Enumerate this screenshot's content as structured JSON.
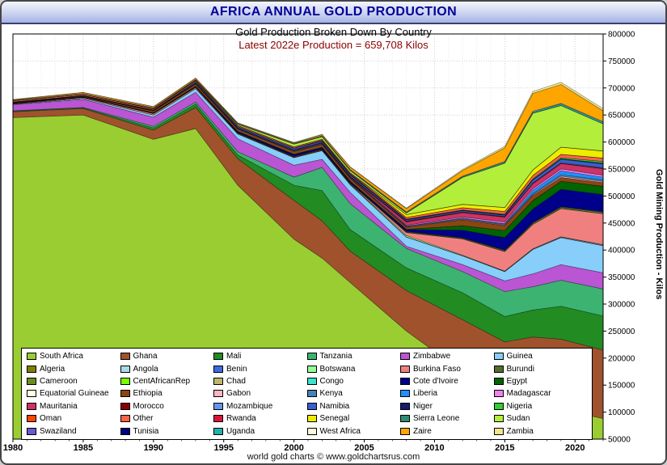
{
  "window": {
    "title": "AFRICA ANNUAL GOLD PRODUCTION"
  },
  "chart": {
    "subtitle": "Gold Production Broken Down By Country",
    "production_note": "Latest 2022e Production = 659,708 Kilos",
    "y_axis_title": "Gold Mining Production - Kilos",
    "footer_credit": "world gold charts © www.goldchartsrus.com"
  },
  "colors": {
    "title_text": "#000099",
    "note_text": "#8b0000",
    "grid_major": "#cfcfcf",
    "grid_minor": "#e9e9e9",
    "plot_border": "#000000"
  },
  "chart_data": {
    "type": "area",
    "stacked": true,
    "title": "AFRICA ANNUAL GOLD PRODUCTION",
    "subtitle": "Gold Production Broken Down By Country",
    "annotation": "Latest 2022e Production = 659,708 Kilos",
    "ylabel": "Gold Mining Production - Kilos",
    "unit": "kilograms",
    "grid": true,
    "legend_position": "bottom-left",
    "xlim": [
      1980,
      2022
    ],
    "ylim": [
      50000,
      800000
    ],
    "x_ticks": [
      1980,
      1985,
      1990,
      1995,
      2000,
      2005,
      2010,
      2015,
      2020
    ],
    "y_ticks": [
      50000,
      100000,
      150000,
      200000,
      250000,
      300000,
      350000,
      400000,
      450000,
      500000,
      550000,
      600000,
      650000,
      700000,
      750000,
      800000
    ],
    "values_note": "values estimated from stacked bands, kilos",
    "x": [
      1980,
      1985,
      1990,
      1993,
      1996,
      2000,
      2002,
      2004,
      2008,
      2012,
      2015,
      2017,
      2019,
      2022
    ],
    "series": [
      {
        "name": "South Africa",
        "color": "#9ACD32",
        "values": [
          645000,
          650000,
          605000,
          625000,
          520000,
          420000,
          385000,
          340000,
          250000,
          175000,
          135000,
          137000,
          105000,
          88000
        ]
      },
      {
        "name": "Ghana",
        "color": "#A0522D",
        "values": [
          11000,
          12000,
          17000,
          39000,
          49000,
          72000,
          69000,
          58000,
          75000,
          96000,
          95000,
          102000,
          130000,
          127000
        ]
      },
      {
        "name": "Mali",
        "color": "#228B22",
        "values": [
          1000,
          1000,
          4000,
          6000,
          7000,
          28000,
          56000,
          40000,
          42000,
          50000,
          47000,
          50000,
          61000,
          63000
        ]
      },
      {
        "name": "Tanzania",
        "color": "#3CB371",
        "values": [
          1000,
          1000,
          3000,
          4000,
          6000,
          15000,
          43000,
          48000,
          36000,
          39000,
          46000,
          43000,
          48000,
          50000
        ]
      },
      {
        "name": "Zimbabwe",
        "color": "#BA55D3",
        "values": [
          11000,
          15000,
          17000,
          18000,
          24000,
          22000,
          15000,
          21000,
          4000,
          13000,
          20000,
          24000,
          29000,
          30000
        ]
      },
      {
        "name": "Guinea",
        "color": "#87CEFA",
        "values": [
          1000,
          2000,
          4000,
          7000,
          9000,
          14000,
          16000,
          14000,
          17000,
          16000,
          17000,
          45000,
          50000,
          50000
        ]
      },
      {
        "name": "Algeria",
        "color": "#808000",
        "values": [
          0,
          0,
          0,
          0,
          0,
          400,
          500,
          600,
          400,
          300,
          200,
          100,
          100,
          100
        ]
      },
      {
        "name": "Angola",
        "color": "#ADD8E6",
        "values": [
          0,
          0,
          0,
          0,
          0,
          0,
          0,
          0,
          0,
          200,
          500,
          800,
          1000,
          1500
        ]
      },
      {
        "name": "Benin",
        "color": "#4169E1",
        "values": [
          0,
          0,
          0,
          0,
          0,
          0,
          0,
          0,
          0,
          0,
          0,
          100,
          100,
          100
        ]
      },
      {
        "name": "Botswana",
        "color": "#98FB98",
        "values": [
          0,
          0,
          0,
          0,
          0,
          0,
          200,
          700,
          2500,
          1000,
          500,
          500,
          500,
          500
        ]
      },
      {
        "name": "Burkina Faso",
        "color": "#F08080",
        "values": [
          1000,
          1500,
          2500,
          2000,
          1000,
          1000,
          1000,
          1000,
          5500,
          30000,
          36000,
          45000,
          52000,
          57000
        ]
      },
      {
        "name": "Burundi",
        "color": "#556B2F",
        "values": [
          200,
          200,
          300,
          300,
          300,
          400,
          400,
          500,
          500,
          500,
          500,
          500,
          500,
          500
        ]
      },
      {
        "name": "Cameroon",
        "color": "#6B8E23",
        "values": [
          200,
          200,
          300,
          300,
          500,
          500,
          600,
          700,
          1000,
          1000,
          1500,
          2000,
          2000,
          2000
        ]
      },
      {
        "name": "CentAfricanRep",
        "color": "#7CFC00",
        "values": [
          100,
          100,
          200,
          200,
          200,
          200,
          200,
          200,
          300,
          300,
          300,
          400,
          500,
          500
        ]
      },
      {
        "name": "Chad",
        "color": "#BDB76B",
        "values": [
          0,
          0,
          0,
          0,
          200,
          300,
          300,
          300,
          400,
          400,
          400,
          400,
          400,
          400
        ]
      },
      {
        "name": "Congo",
        "color": "#40E0D0",
        "values": [
          100,
          100,
          100,
          100,
          100,
          100,
          100,
          100,
          200,
          200,
          200,
          300,
          300,
          300
        ]
      },
      {
        "name": "Cote d'Ivoire",
        "color": "#00008B",
        "values": [
          0,
          0,
          500,
          1000,
          2000,
          3000,
          2500,
          2000,
          3000,
          14000,
          23000,
          25000,
          32000,
          32000
        ]
      },
      {
        "name": "Egypt",
        "color": "#006400",
        "values": [
          500,
          500,
          500,
          500,
          500,
          500,
          500,
          500,
          500,
          8000,
          13000,
          15500,
          15000,
          15000
        ]
      },
      {
        "name": "Equatorial Guineae",
        "color": "#FFFFE0",
        "values": [
          0,
          0,
          0,
          0,
          0,
          0,
          0,
          0,
          0,
          100,
          100,
          100,
          100,
          100
        ]
      },
      {
        "name": "Ethiopia",
        "color": "#8B4513",
        "values": [
          500,
          1000,
          3000,
          4000,
          4000,
          5000,
          5000,
          5000,
          4000,
          11000,
          9000,
          9000,
          7000,
          7000
        ]
      },
      {
        "name": "Gabon",
        "color": "#FFB6C1",
        "values": [
          100,
          100,
          100,
          100,
          100,
          300,
          300,
          300,
          500,
          1000,
          1000,
          1500,
          2000,
          2000
        ]
      },
      {
        "name": "Kenya",
        "color": "#4682B4",
        "values": [
          200,
          200,
          200,
          300,
          300,
          500,
          550,
          600,
          1000,
          1500,
          2000,
          2500,
          3000,
          3000
        ]
      },
      {
        "name": "Liberia",
        "color": "#1E90FF",
        "values": [
          400,
          400,
          500,
          600,
          800,
          1000,
          800,
          500,
          600,
          700,
          700,
          6000,
          7000,
          5000
        ]
      },
      {
        "name": "Madagascar",
        "color": "#EE82EE",
        "values": [
          200,
          200,
          300,
          300,
          500,
          1000,
          1000,
          1000,
          1500,
          2000,
          3000,
          3000,
          3500,
          3500
        ]
      },
      {
        "name": "Mauritania",
        "color": "#CC3366",
        "values": [
          0,
          0,
          0,
          0,
          0,
          0,
          0,
          0,
          6000,
          8000,
          9000,
          9000,
          10000,
          12000
        ]
      },
      {
        "name": "Morocco",
        "color": "#8B0000",
        "values": [
          300,
          300,
          300,
          500,
          500,
          500,
          1000,
          1500,
          1500,
          1000,
          1000,
          1000,
          1000,
          1000
        ]
      },
      {
        "name": "Mozambique",
        "color": "#6495ED",
        "values": [
          100,
          100,
          100,
          100,
          200,
          200,
          250,
          300,
          500,
          500,
          500,
          700,
          1000,
          1000
        ]
      },
      {
        "name": "Namibia",
        "color": "#3A5FCD",
        "values": [
          200,
          200,
          500,
          2000,
          2000,
          2500,
          2500,
          2500,
          2000,
          2000,
          2000,
          5000,
          6000,
          7000
        ]
      },
      {
        "name": "Niger",
        "color": "#191970",
        "values": [
          0,
          0,
          0,
          0,
          0,
          0,
          1000,
          1500,
          1000,
          1000,
          1000,
          1000,
          1000,
          1500
        ]
      },
      {
        "name": "Nigeria",
        "color": "#32CD32",
        "values": [
          100,
          100,
          100,
          200,
          200,
          200,
          200,
          200,
          500,
          500,
          1000,
          1500,
          2000,
          3000
        ]
      },
      {
        "name": "Oman",
        "color": "#FF4500",
        "values": [
          0,
          0,
          0,
          300,
          300,
          300,
          200,
          100,
          0,
          0,
          0,
          0,
          0,
          100
        ]
      },
      {
        "name": "Other",
        "color": "#FF6347",
        "values": [
          2000,
          2000,
          2000,
          2000,
          2000,
          2000,
          2000,
          2000,
          3000,
          4000,
          5000,
          6000,
          6000,
          6000
        ]
      },
      {
        "name": "Rwanda",
        "color": "#DC143C",
        "values": [
          100,
          100,
          100,
          100,
          100,
          100,
          100,
          100,
          100,
          200,
          200,
          200,
          200,
          200
        ]
      },
      {
        "name": "Senegal",
        "color": "#EDED00",
        "values": [
          0,
          0,
          0,
          0,
          0,
          0,
          0,
          0,
          5000,
          6000,
          7000,
          10000,
          13000,
          13000
        ]
      },
      {
        "name": "Sierra Leone",
        "color": "#2E8B74",
        "values": [
          200,
          200,
          200,
          100,
          100,
          100,
          100,
          100,
          200,
          300,
          300,
          300,
          300,
          300
        ]
      },
      {
        "name": "Sudan",
        "color": "#B3EE3A",
        "values": [
          0,
          0,
          500,
          1000,
          2000,
          5000,
          4500,
          4000,
          3000,
          50000,
          82000,
          105000,
          77000,
          50000
        ]
      },
      {
        "name": "Swaziland",
        "color": "#6A5ACD",
        "values": [
          0,
          0,
          0,
          0,
          0,
          0,
          0,
          0,
          0,
          0,
          50,
          50,
          50,
          50
        ]
      },
      {
        "name": "Tunisia",
        "color": "#000080",
        "values": [
          0,
          0,
          0,
          0,
          0,
          0,
          0,
          0,
          0,
          0,
          50,
          50,
          50,
          50
        ]
      },
      {
        "name": "Uganda",
        "color": "#20B2AA",
        "values": [
          100,
          100,
          100,
          200,
          300,
          500,
          700,
          1000,
          1000,
          1500,
          2000,
          2500,
          3000,
          3000
        ]
      },
      {
        "name": "West Africa",
        "color": "#FFF8DC",
        "values": [
          1000,
          1000,
          1000,
          1000,
          1000,
          1000,
          1000,
          1000,
          1000,
          1000,
          1000,
          1000,
          1000,
          1000
        ]
      },
      {
        "name": "Zaire",
        "color": "#FFA500",
        "values": [
          1000,
          2000,
          2000,
          2000,
          1000,
          1000,
          2000,
          4000,
          6000,
          10000,
          25000,
          33000,
          35000,
          20000
        ]
      },
      {
        "name": "Zambia",
        "color": "#F0E68C",
        "values": [
          300,
          300,
          300,
          300,
          500,
          500,
          800,
          1000,
          1000,
          2000,
          3000,
          3500,
          4000,
          4000
        ]
      }
    ]
  }
}
